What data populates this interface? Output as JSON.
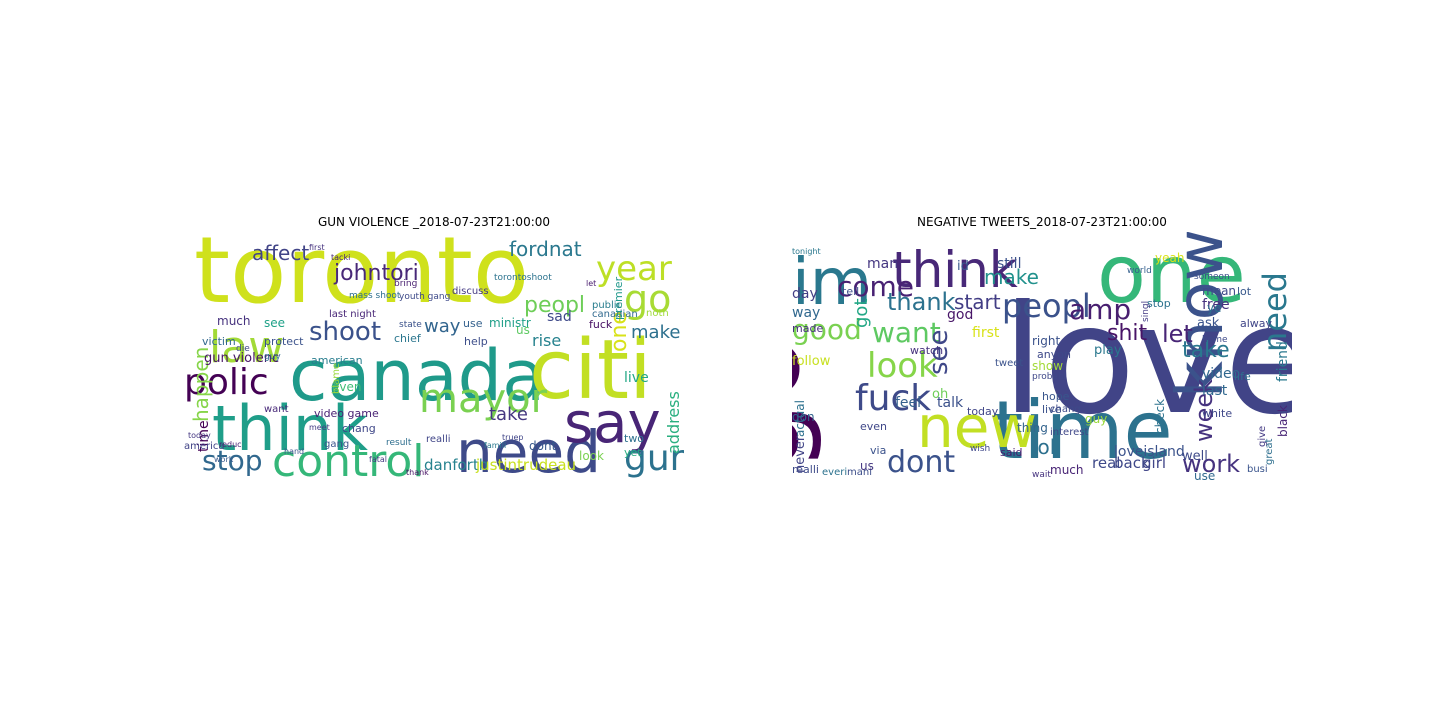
{
  "figure": {
    "panels": [
      {
        "title": "GUN VIOLENCE _2018-07-23T21:00:00",
        "words": [
          {
            "text": "toronto",
            "color": "#cfe11c"
          },
          {
            "text": "canada",
            "color": "#1f9a8a"
          },
          {
            "text": "citi",
            "color": "#c2df23"
          },
          {
            "text": "think",
            "color": "#1f9e89"
          },
          {
            "text": "need",
            "color": "#3e4a89"
          },
          {
            "text": "say",
            "color": "#482576"
          },
          {
            "text": "mayor",
            "color": "#7ad151"
          },
          {
            "text": "control",
            "color": "#35b779"
          },
          {
            "text": "law",
            "color": "#a2da37"
          },
          {
            "text": "polic",
            "color": "#440154"
          },
          {
            "text": "shoot",
            "color": "#3b528b"
          },
          {
            "text": "stop",
            "color": "#31688e"
          },
          {
            "text": "gun",
            "color": "#2c728e"
          },
          {
            "text": "year",
            "color": "#bddf26"
          },
          {
            "text": "go",
            "color": "#a8db34"
          },
          {
            "text": "johntori",
            "color": "#482878"
          },
          {
            "text": "fordnat",
            "color": "#2a788e"
          },
          {
            "text": "affect",
            "color": "#414487"
          },
          {
            "text": "happen",
            "color": "#86d549"
          },
          {
            "text": "peopl",
            "color": "#6ece58"
          },
          {
            "text": "make",
            "color": "#2d708e"
          },
          {
            "text": "way",
            "color": "#32658e"
          },
          {
            "text": "address",
            "color": "#29af7f"
          },
          {
            "text": "time",
            "color": "#440154"
          },
          {
            "text": "take",
            "color": "#453781"
          },
          {
            "text": "one",
            "color": "#d8e219"
          },
          {
            "text": "rise",
            "color": "#26828e"
          },
          {
            "text": "gun violenc",
            "color": "#481467"
          },
          {
            "text": "danforth",
            "color": "#26828e"
          },
          {
            "text": "justintrudeau",
            "color": "#c8e020"
          },
          {
            "text": "sad",
            "color": "#3e4989"
          },
          {
            "text": "much",
            "color": "#46327e"
          },
          {
            "text": "see",
            "color": "#1fa188"
          },
          {
            "text": "victim",
            "color": "#31688e"
          },
          {
            "text": "protect",
            "color": "#3b528b"
          },
          {
            "text": "chief",
            "color": "#2a768e"
          },
          {
            "text": "american",
            "color": "#287d8e"
          },
          {
            "text": "canadian",
            "color": "#30698e"
          },
          {
            "text": "noth",
            "color": "#9fda3a"
          },
          {
            "text": "premier",
            "color": "#1f988b"
          },
          {
            "text": "fuck",
            "color": "#471063"
          },
          {
            "text": "us",
            "color": "#5ec962"
          },
          {
            "text": "live",
            "color": "#22a785"
          },
          {
            "text": "dont",
            "color": "#38598c"
          },
          {
            "text": "look",
            "color": "#7ad151"
          },
          {
            "text": "two",
            "color": "#2d718e"
          },
          {
            "text": "yet",
            "color": "#27ad81"
          },
          {
            "text": "america",
            "color": "#414487"
          },
          {
            "text": "realli",
            "color": "#404688"
          },
          {
            "text": "video game",
            "color": "#482173"
          },
          {
            "text": "gang",
            "color": "#3a548c"
          },
          {
            "text": "want",
            "color": "#482979"
          },
          {
            "text": "even",
            "color": "#3dbc74"
          },
          {
            "text": "chang",
            "color": "#3f4788"
          },
          {
            "text": "discuss",
            "color": "#443a83"
          },
          {
            "text": "public",
            "color": "#287d8e"
          },
          {
            "text": "ministr",
            "color": "#1f9f88"
          },
          {
            "text": "help",
            "color": "#3d4e8a"
          },
          {
            "text": "use",
            "color": "#34618d"
          },
          {
            "text": "last night",
            "color": "#482677"
          },
          {
            "text": "youth gang",
            "color": "#3e4a89"
          },
          {
            "text": "mass shoot",
            "color": "#2e6f8e"
          },
          {
            "text": "bring",
            "color": "#481f70"
          },
          {
            "text": "state",
            "color": "#3b528b"
          },
          {
            "text": "torontoshoot",
            "color": "#2c738e"
          },
          {
            "text": "guy",
            "color": "#2e6e8e"
          },
          {
            "text": "die",
            "color": "#3f4889"
          },
          {
            "text": "work",
            "color": "#38588c"
          },
          {
            "text": "reduc",
            "color": "#482475"
          },
          {
            "text": "hand",
            "color": "#39568c"
          },
          {
            "text": "today",
            "color": "#453882"
          },
          {
            "text": "meet",
            "color": "#443b84"
          },
          {
            "text": "tacki",
            "color": "#482576"
          },
          {
            "text": "first",
            "color": "#46337f"
          },
          {
            "text": "let",
            "color": "#481c6e"
          },
          {
            "text": "blame",
            "color": "#9bd93c"
          },
          {
            "text": "result",
            "color": "#2e6e8e"
          },
          {
            "text": "fatal",
            "color": "#453882"
          },
          {
            "text": "thank",
            "color": "#471365"
          },
          {
            "text": "famili",
            "color": "#2a788e"
          },
          {
            "text": "truep",
            "color": "#404588"
          }
        ]
      },
      {
        "title": "NEGATIVE TWEETS_2018-07-23T21:00:00",
        "words": [
          {
            "text": "love",
            "color": "#414487"
          },
          {
            "text": "one",
            "color": "#35b779"
          },
          {
            "text": "im",
            "color": "#2a788e"
          },
          {
            "text": "time",
            "color": "#2c728e"
          },
          {
            "text": "go",
            "color": "#440154"
          },
          {
            "text": "think",
            "color": "#482878"
          },
          {
            "text": "know",
            "color": "#3b528b"
          },
          {
            "text": "new",
            "color": "#c2df23"
          },
          {
            "text": "need",
            "color": "#2a788e"
          },
          {
            "text": "peopl",
            "color": "#3b528b"
          },
          {
            "text": "good",
            "color": "#7ad151"
          },
          {
            "text": "want",
            "color": "#5ec962"
          },
          {
            "text": "fuck",
            "color": "#3e4a89"
          },
          {
            "text": "look",
            "color": "#86d549"
          },
          {
            "text": "come",
            "color": "#482173"
          },
          {
            "text": "thank",
            "color": "#2c728e"
          },
          {
            "text": "amp",
            "color": "#481f70"
          },
          {
            "text": "work",
            "color": "#46337f"
          },
          {
            "text": "dont",
            "color": "#3b528b"
          },
          {
            "text": "week",
            "color": "#46337f"
          },
          {
            "text": "let",
            "color": "#482576"
          },
          {
            "text": "take",
            "color": "#2a788e"
          },
          {
            "text": "make",
            "color": "#21918c"
          },
          {
            "text": "start",
            "color": "#433e85"
          },
          {
            "text": "see",
            "color": "#3f4788"
          },
          {
            "text": "shit",
            "color": "#481467"
          },
          {
            "text": "got",
            "color": "#22a785"
          },
          {
            "text": "lol",
            "color": "#2d708e"
          },
          {
            "text": "day",
            "color": "#433e85"
          },
          {
            "text": "way",
            "color": "#31688e"
          },
          {
            "text": "girl",
            "color": "#404588"
          },
          {
            "text": "back",
            "color": "#3f4889"
          },
          {
            "text": "real",
            "color": "#3e4989"
          },
          {
            "text": "video",
            "color": "#31688e"
          },
          {
            "text": "friend",
            "color": "#2a788e"
          },
          {
            "text": "loveisland",
            "color": "#3b528b"
          },
          {
            "text": "god",
            "color": "#481668"
          },
          {
            "text": "man",
            "color": "#453781"
          },
          {
            "text": "still",
            "color": "#3b528b"
          },
          {
            "text": "id",
            "color": "#38598c"
          },
          {
            "text": "first",
            "color": "#d8e219"
          },
          {
            "text": "made",
            "color": "#46307e"
          },
          {
            "text": "oh",
            "color": "#6ece58"
          },
          {
            "text": "feel",
            "color": "#35608d"
          },
          {
            "text": "talk",
            "color": "#3b518b"
          },
          {
            "text": "free",
            "color": "#46327e"
          },
          {
            "text": "ask",
            "color": "#3a548c"
          },
          {
            "text": "last",
            "color": "#31688e"
          },
          {
            "text": "check",
            "color": "#2c738e"
          },
          {
            "text": "never",
            "color": "#414487"
          },
          {
            "text": "actual",
            "color": "#2d718e"
          },
          {
            "text": "follow",
            "color": "#c8e020"
          },
          {
            "text": "even",
            "color": "#3f4788"
          },
          {
            "text": "via",
            "color": "#3b528b"
          },
          {
            "text": "don",
            "color": "#32658e"
          },
          {
            "text": "realli",
            "color": "#3e4a89"
          },
          {
            "text": "everi",
            "color": "#2c728e"
          },
          {
            "text": "mani",
            "color": "#3d4e8a"
          },
          {
            "text": "us",
            "color": "#453882"
          },
          {
            "text": "much",
            "color": "#482475"
          },
          {
            "text": "said",
            "color": "#481c6e"
          },
          {
            "text": "thing",
            "color": "#33638d"
          },
          {
            "text": "guy",
            "color": "#9bd93c"
          },
          {
            "text": "today",
            "color": "#404688"
          },
          {
            "text": "live",
            "color": "#3b528b"
          },
          {
            "text": "hope",
            "color": "#39568c"
          },
          {
            "text": "white",
            "color": "#3f4788"
          },
          {
            "text": "well",
            "color": "#3e4a89"
          },
          {
            "text": "use",
            "color": "#30698e"
          },
          {
            "text": "black",
            "color": "#482576"
          },
          {
            "text": "life",
            "color": "#2e6e8e"
          },
          {
            "text": "play",
            "color": "#2a788e"
          },
          {
            "text": "show",
            "color": "#a2da37"
          },
          {
            "text": "watch",
            "color": "#46327e"
          },
          {
            "text": "tell",
            "color": "#3d4e8a"
          },
          {
            "text": "right",
            "color": "#3b528b"
          },
          {
            "text": "mean",
            "color": "#3e4a89"
          },
          {
            "text": "ye",
            "color": "#2d718e"
          },
          {
            "text": "lot",
            "color": "#38588c"
          },
          {
            "text": "alway",
            "color": "#404688"
          },
          {
            "text": "stop",
            "color": "#2c728e"
          },
          {
            "text": "yeah",
            "color": "#d8e219"
          },
          {
            "text": "anyon",
            "color": "#3e4989"
          },
          {
            "text": "chang",
            "color": "#3e4a89"
          },
          {
            "text": "interest",
            "color": "#3f4788"
          },
          {
            "text": "tweet",
            "color": "#3b528b"
          },
          {
            "text": "probabl",
            "color": "#3f4889"
          },
          {
            "text": "give",
            "color": "#443a83"
          },
          {
            "text": "busi",
            "color": "#3a548c"
          },
          {
            "text": "great",
            "color": "#2e6f8e"
          },
          {
            "text": "wait",
            "color": "#46337f"
          },
          {
            "text": "wish",
            "color": "#3f4788"
          },
          {
            "text": "world",
            "color": "#35608d"
          },
          {
            "text": "home",
            "color": "#3e4a89"
          },
          {
            "text": "singl",
            "color": "#443b84"
          },
          {
            "text": "someon",
            "color": "#3d4e8a"
          },
          {
            "text": "tonight",
            "color": "#2a788e"
          }
        ]
      }
    ]
  }
}
